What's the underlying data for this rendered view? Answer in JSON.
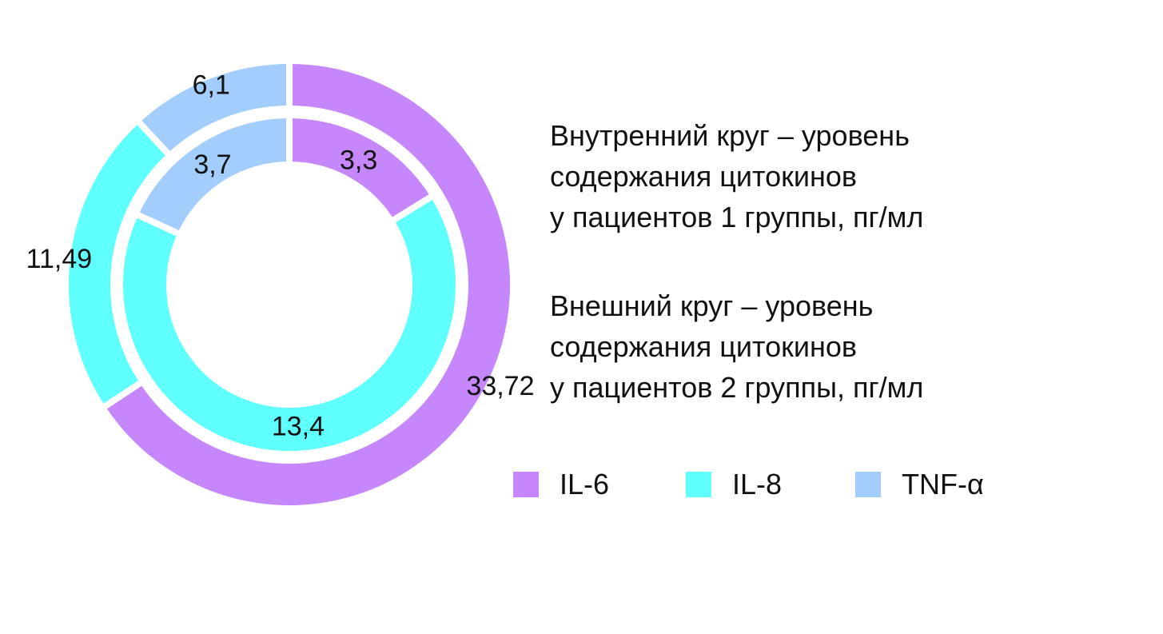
{
  "chart_data": {
    "type": "pie",
    "variant": "nested-donut",
    "categories": [
      "IL-6",
      "IL-8",
      "TNF-α"
    ],
    "colors": [
      "#c687fd",
      "#5ffffd",
      "#a3cdfd"
    ],
    "series": [
      {
        "ring": "inner",
        "values": [
          3.3,
          13.4,
          3.7
        ],
        "labels": [
          "3,3",
          "13,4",
          "3,7"
        ]
      },
      {
        "ring": "outer",
        "values": [
          33.72,
          11.49,
          6.1
        ],
        "labels": [
          "33,72",
          "11,49",
          "6,1"
        ]
      }
    ],
    "legend": {
      "position": "bottom-right",
      "entries": [
        "IL-6",
        "IL-8",
        "TNF-α"
      ]
    }
  },
  "captions": {
    "inner": [
      "Внутренний круг – уровень",
      "содержания цитокинов",
      "у пациентов 1 группы, пг/мл"
    ],
    "outer": [
      "Внешний круг – уровень",
      "содержания цитокинов",
      "у пациентов 2 группы, пг/мл"
    ]
  }
}
